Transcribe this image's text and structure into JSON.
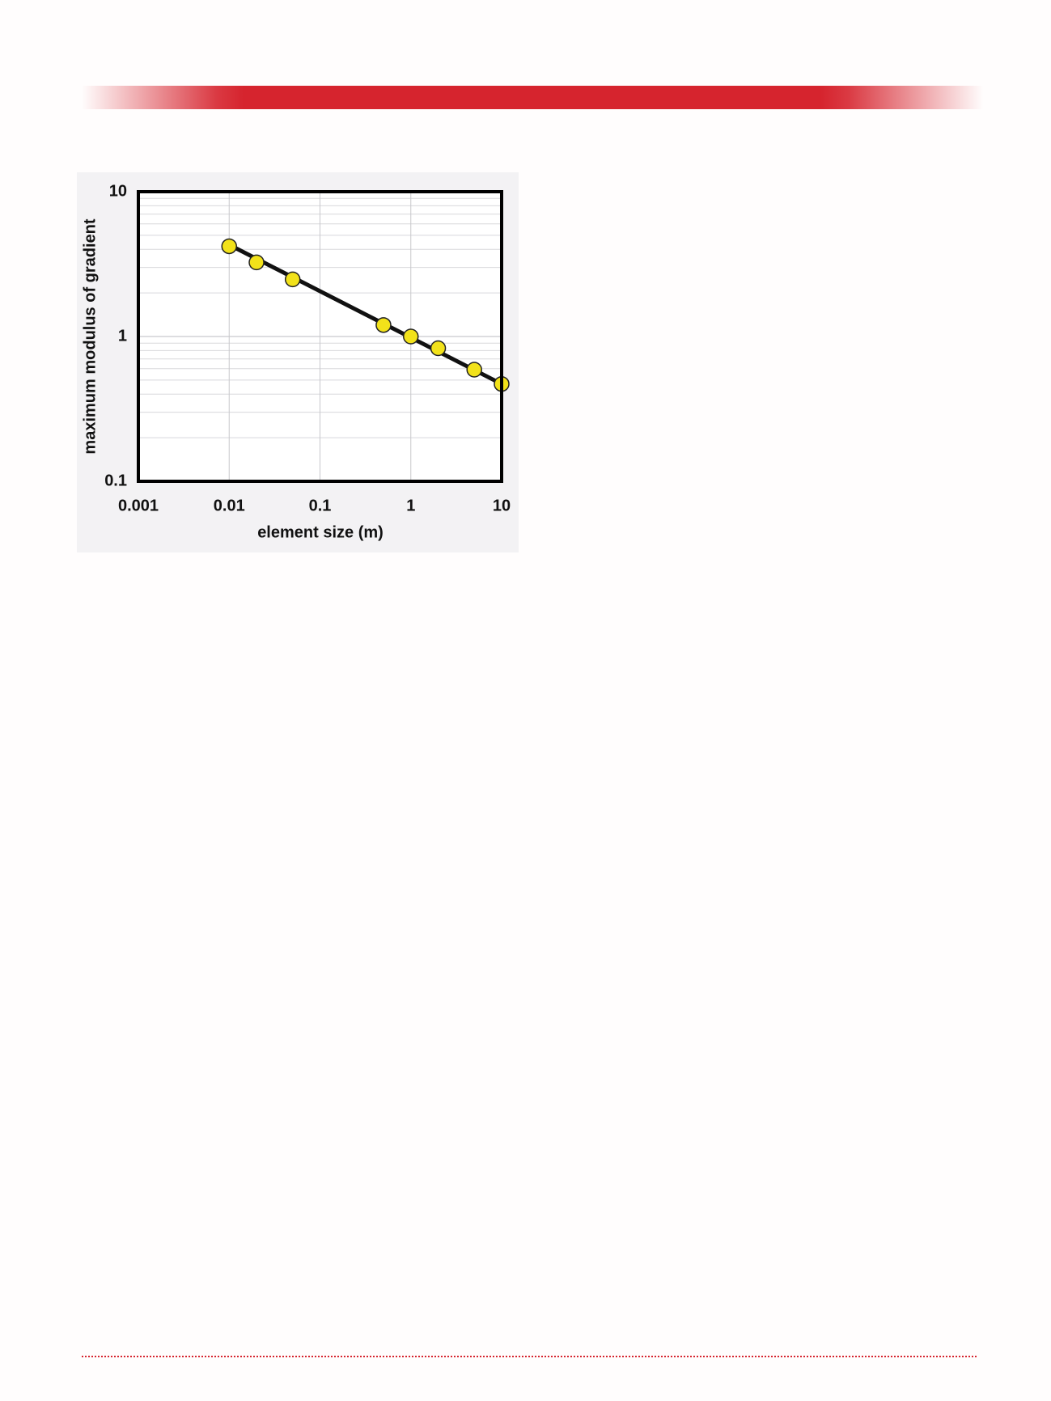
{
  "chart_data": {
    "type": "scatter",
    "xlabel": "element size (m)",
    "ylabel": "maximum modulus of gradient",
    "xlog": true,
    "ylog": true,
    "xlim": [
      0.001,
      10
    ],
    "ylim": [
      0.1,
      10
    ],
    "xticks": [
      0.001,
      0.01,
      0.1,
      1,
      10
    ],
    "yticks": [
      0.1,
      1,
      10
    ],
    "yminorticks": [
      0.2,
      0.3,
      0.4,
      0.5,
      0.6,
      0.7,
      0.8,
      0.9,
      2,
      3,
      4,
      5,
      6,
      7,
      8,
      9
    ],
    "grid": true,
    "series": [
      {
        "color": "#f2e21a",
        "x": [
          0.01,
          0.02,
          0.05,
          0.5,
          1,
          2,
          5,
          10
        ],
        "values": [
          4.2,
          3.25,
          2.48,
          1.2,
          1.0,
          0.83,
          0.59,
          0.47
        ]
      }
    ],
    "fit": {
      "color": "#111111",
      "x": [
        0.01,
        10
      ],
      "values": [
        4.3,
        0.47
      ]
    }
  }
}
